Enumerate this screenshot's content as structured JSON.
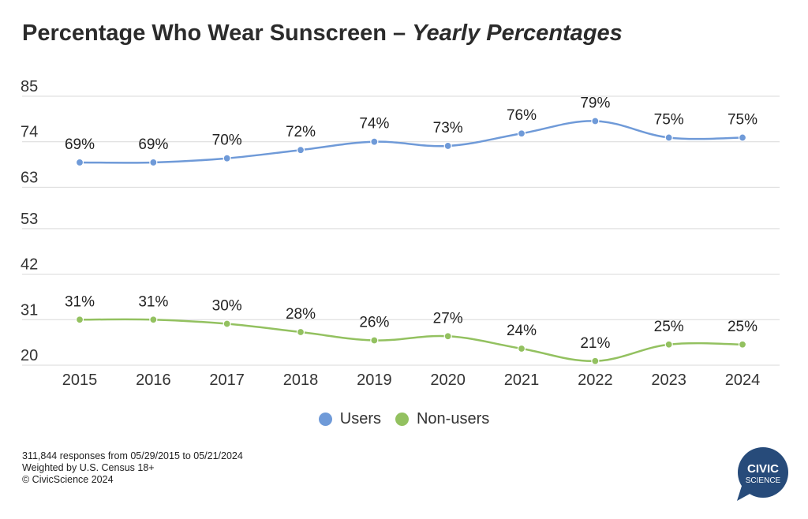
{
  "title": {
    "main": "Percentage Who Wear Sunscreen – ",
    "sub": "Yearly Percentages"
  },
  "footnotes": [
    "311,844 responses from 05/29/2015 to 05/21/2024",
    "Weighted by U.S. Census 18+",
    "© CivicScience 2024"
  ],
  "logo": {
    "line1": "CIVIC",
    "line2": "SCIENCE",
    "color": "#274b7a"
  },
  "chart_data": {
    "type": "line",
    "title": "Percentage Who Wear Sunscreen – Yearly Percentages",
    "x": [
      "2015",
      "2016",
      "2017",
      "2018",
      "2019",
      "2020",
      "2021",
      "2022",
      "2023",
      "2024"
    ],
    "yticks": [
      "85",
      "74",
      "63",
      "53",
      "42",
      "31",
      "20"
    ],
    "ylim": [
      20,
      85
    ],
    "grid": true,
    "legend_position": "bottom",
    "series": [
      {
        "name": "Users",
        "color": "#6f9ad8",
        "values": [
          69,
          69,
          70,
          72,
          74,
          73,
          76,
          79,
          75,
          75
        ],
        "labels": [
          "69%",
          "69%",
          "70%",
          "72%",
          "74%",
          "73%",
          "76%",
          "79%",
          "75%",
          "75%"
        ]
      },
      {
        "name": "Non-users",
        "color": "#93c160",
        "values": [
          31,
          31,
          30,
          28,
          26,
          27,
          24,
          21,
          25,
          25
        ],
        "labels": [
          "31%",
          "31%",
          "30%",
          "28%",
          "26%",
          "27%",
          "24%",
          "21%",
          "25%",
          "25%"
        ]
      }
    ]
  }
}
